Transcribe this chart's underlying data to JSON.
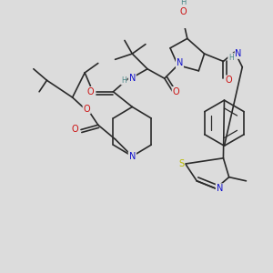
{
  "bg_color": "#dcdcdc",
  "bond_color": "#2a2a2a",
  "bond_width": 1.2,
  "atom_colors": {
    "N": "#1010cc",
    "O": "#cc1010",
    "S": "#bbbb00",
    "H": "#4a8888",
    "C": "#2a2a2a"
  },
  "font_size": 6.5,
  "figsize": [
    3.0,
    3.0
  ],
  "dpi": 100
}
